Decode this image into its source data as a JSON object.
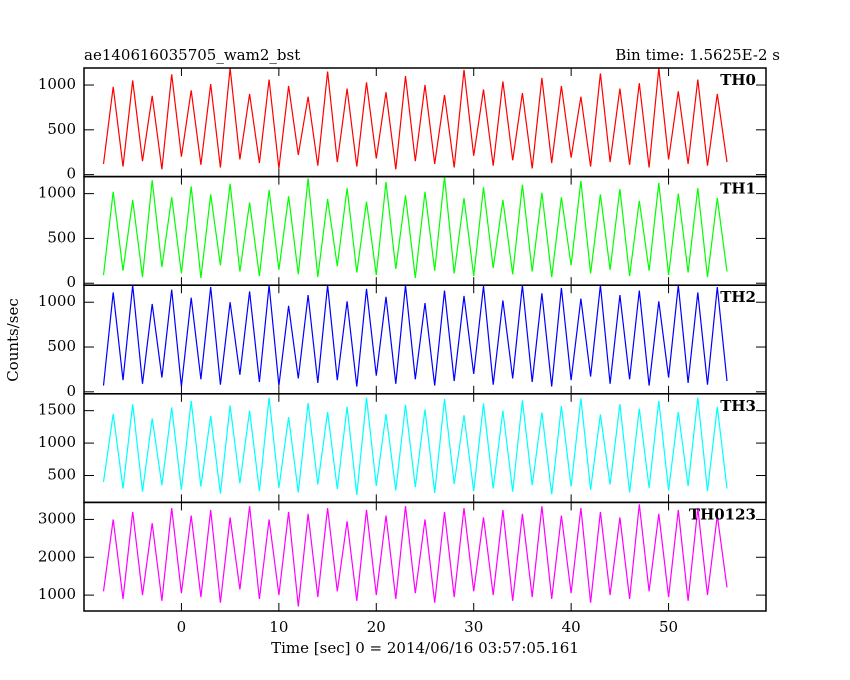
{
  "chart_data": {
    "type": "line",
    "title": "ae140616035705_wam2_bst",
    "subtitle": "Bin time: 1.5625E-2 s",
    "xlabel": "Time [sec] 0 = 2014/06/16 03:57:05.161",
    "ylabel": "Counts/sec",
    "x": [
      -8,
      -7,
      -6,
      -5,
      -4,
      -3,
      -2,
      -1,
      0,
      1,
      2,
      3,
      4,
      5,
      6,
      7,
      8,
      9,
      10,
      11,
      12,
      13,
      14,
      15,
      16,
      17,
      18,
      19,
      20,
      21,
      22,
      23,
      24,
      25,
      26,
      27,
      28,
      29,
      30,
      31,
      32,
      33,
      34,
      35,
      36,
      37,
      38,
      39,
      40,
      41,
      42,
      43,
      44,
      45,
      46,
      47,
      48,
      49,
      50,
      51,
      52,
      53,
      54,
      55,
      56
    ],
    "xlim": [
      -10,
      60
    ],
    "xticks": [
      0,
      10,
      20,
      30,
      40,
      50
    ],
    "panels": [
      {
        "name": "TH0",
        "color": "#ff0000",
        "ylim": [
          -22,
          1190
        ],
        "yticks": [
          0,
          500,
          1000
        ],
        "values": [
          120,
          980,
          90,
          1050,
          150,
          880,
          60,
          1120,
          200,
          940,
          110,
          1010,
          80,
          1190,
          170,
          900,
          130,
          1060,
          70,
          990,
          220,
          870,
          100,
          1150,
          140,
          960,
          90,
          1030,
          180,
          920,
          60,
          1100,
          150,
          1000,
          120,
          890,
          80,
          1170,
          210,
          950,
          100,
          1040,
          160,
          910,
          70,
          1080,
          130,
          990,
          190,
          870,
          90,
          1130,
          140,
          960,
          110,
          1020,
          80,
          1190,
          170,
          930,
          120,
          1060,
          100,
          900,
          140
        ]
      },
      {
        "name": "TH1",
        "color": "#00ff00",
        "ylim": [
          -22,
          1190
        ],
        "yticks": [
          0,
          500,
          1000
        ],
        "values": [
          90,
          1020,
          140,
          930,
          70,
          1150,
          180,
          960,
          110,
          1080,
          60,
          990,
          200,
          1110,
          130,
          900,
          80,
          1040,
          150,
          970,
          100,
          1170,
          70,
          940,
          190,
          1060,
          120,
          910,
          90,
          1130,
          160,
          980,
          60,
          1020,
          140,
          1190,
          110,
          950,
          80,
          1070,
          170,
          930,
          100,
          1100,
          130,
          1010,
          70,
          960,
          200,
          1140,
          110,
          990,
          150,
          1050,
          80,
          920,
          140,
          1120,
          90,
          1000,
          120,
          1060,
          70,
          950,
          130
        ]
      },
      {
        "name": "TH2",
        "color": "#0000ff",
        "ylim": [
          -22,
          1190
        ],
        "yticks": [
          0,
          500,
          1000
        ],
        "values": [
          70,
          1110,
          130,
          1190,
          90,
          980,
          160,
          1140,
          60,
          1050,
          140,
          1170,
          80,
          1000,
          190,
          1120,
          110,
          1190,
          70,
          960,
          150,
          1080,
          100,
          1190,
          130,
          1010,
          60,
          1150,
          180,
          1060,
          90,
          1190,
          140,
          990,
          70,
          1130,
          120,
          1070,
          200,
          1180,
          80,
          1020,
          150,
          1190,
          110,
          1100,
          60,
          1160,
          130,
          1040,
          170,
          1190,
          90,
          1080,
          140,
          1130,
          70,
          1010,
          160,
          1190,
          100,
          1110,
          80,
          1170,
          120
        ]
      },
      {
        "name": "TH3",
        "color": "#00ffff",
        "ylim": [
          85,
          1760
        ],
        "yticks": [
          500,
          1000,
          1500
        ],
        "values": [
          400,
          1450,
          300,
          1600,
          250,
          1380,
          350,
          1550,
          280,
          1650,
          330,
          1420,
          220,
          1580,
          380,
          1500,
          260,
          1700,
          310,
          1400,
          240,
          1620,
          360,
          1480,
          290,
          1560,
          200,
          1700,
          340,
          1450,
          270,
          1590,
          320,
          1520,
          230,
          1680,
          370,
          1430,
          260,
          1610,
          300,
          1500,
          250,
          1660,
          350,
          1470,
          210,
          1570,
          330,
          1690,
          280,
          1440,
          360,
          1600,
          240,
          1530,
          310,
          1650,
          270,
          1480,
          340,
          1700,
          260,
          1560,
          300
        ]
      },
      {
        "name": "TH0123",
        "color": "#ff00ff",
        "ylim": [
          580,
          3450
        ],
        "yticks": [
          1000,
          2000,
          3000
        ],
        "values": [
          1100,
          3000,
          900,
          3200,
          1000,
          2900,
          850,
          3300,
          1050,
          3100,
          950,
          3250,
          800,
          3050,
          1150,
          3350,
          900,
          3000,
          1000,
          3200,
          700,
          3150,
          950,
          3300,
          1100,
          2950,
          850,
          3250,
          1000,
          3100,
          900,
          3350,
          1050,
          3000,
          800,
          3200,
          950,
          3300,
          1100,
          3050,
          1000,
          3250,
          850,
          3150,
          950,
          3350,
          900,
          3100,
          1050,
          3300,
          800,
          3200,
          1000,
          3050,
          900,
          3400,
          1100,
          3150,
          950,
          3250,
          850,
          3300,
          1000,
          3100,
          1200
        ]
      }
    ]
  }
}
